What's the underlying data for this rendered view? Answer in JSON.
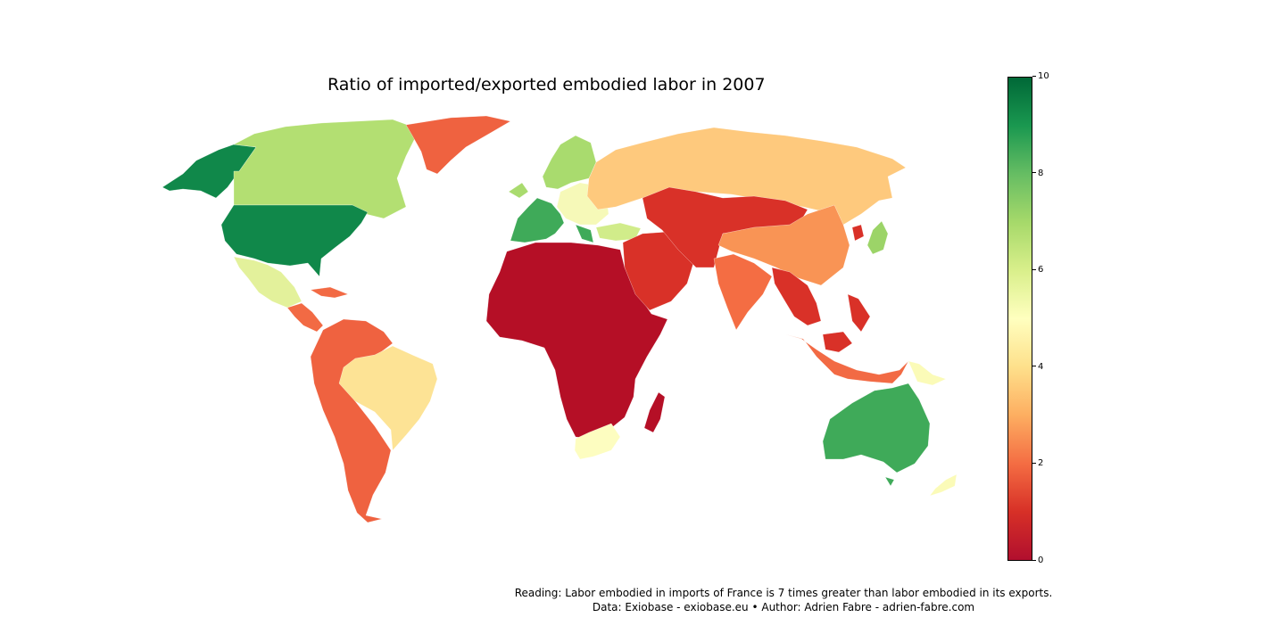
{
  "title": "Ratio of imported/exported embodied labor in 2007",
  "colorbar": {
    "min": 0,
    "max": 10,
    "ticks": [
      "0",
      "2",
      "4",
      "6",
      "8",
      "10"
    ],
    "colors": [
      "#b10f2e",
      "#d73027",
      "#f46d43",
      "#fdae61",
      "#fee08b",
      "#ffffbf",
      "#d9ef8b",
      "#a6d96a",
      "#66bd63",
      "#1a9850",
      "#006837"
    ]
  },
  "regions": [
    {
      "name": "alaska",
      "color": "#10884a"
    },
    {
      "name": "canada",
      "color": "#b3df72"
    },
    {
      "name": "usa",
      "color": "#10884a"
    },
    {
      "name": "mexico",
      "color": "#e3f19b"
    },
    {
      "name": "central-america",
      "color": "#f26a44"
    },
    {
      "name": "greenland",
      "color": "#ef6240"
    },
    {
      "name": "south-america",
      "color": "#ef6240"
    },
    {
      "name": "brazil",
      "color": "#fde395"
    },
    {
      "name": "western-europe",
      "color": "#3faa59"
    },
    {
      "name": "scandinavia",
      "color": "#a9db6e"
    },
    {
      "name": "eastern-europe",
      "color": "#f6f9b8"
    },
    {
      "name": "russia",
      "color": "#fec97d"
    },
    {
      "name": "turkey",
      "color": "#d1ec8a"
    },
    {
      "name": "africa",
      "color": "#b50f26"
    },
    {
      "name": "south-africa",
      "color": "#fdfdc0"
    },
    {
      "name": "madagascar",
      "color": "#b50f26"
    },
    {
      "name": "middle-east",
      "color": "#d93128"
    },
    {
      "name": "central-asia",
      "color": "#d93128"
    },
    {
      "name": "china",
      "color": "#f99455"
    },
    {
      "name": "india",
      "color": "#f46d43"
    },
    {
      "name": "southeast-asia",
      "color": "#d93128"
    },
    {
      "name": "indonesia",
      "color": "#f26a44"
    },
    {
      "name": "japan",
      "color": "#9cd468"
    },
    {
      "name": "korea",
      "color": "#d93128"
    },
    {
      "name": "australia",
      "color": "#3faa59"
    },
    {
      "name": "new-zealand",
      "color": "#fbfbb8"
    }
  ],
  "caption": {
    "line1": "Reading: Labor embodied in imports of France is 7 times greater than labor embodied in its exports.",
    "line2": "Data: Exiobase - exiobase.eu • Author: Adrien Fabre - adrien-fabre.com"
  }
}
